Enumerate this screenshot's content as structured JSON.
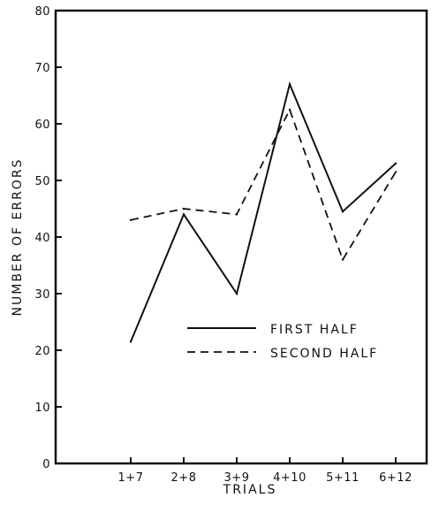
{
  "chart_data": {
    "type": "line",
    "title": "",
    "xlabel": "TRIALS",
    "ylabel": "NUMBER OF ERRORS",
    "categories": [
      "1+7",
      "2+8",
      "3+9",
      "4+10",
      "5+11",
      "6+12"
    ],
    "ylim": [
      0,
      80
    ],
    "yticks": [
      0,
      10,
      20,
      30,
      40,
      50,
      60,
      70,
      80
    ],
    "grid": false,
    "legend_position": "lower-right",
    "series": [
      {
        "name": "FIRST HALF",
        "style": "solid",
        "values": [
          21.5,
          44,
          30,
          67,
          44.5,
          53
        ]
      },
      {
        "name": "SECOND HALF",
        "style": "dashed",
        "values": [
          43,
          45,
          44,
          62.5,
          36,
          51.5
        ]
      }
    ]
  }
}
